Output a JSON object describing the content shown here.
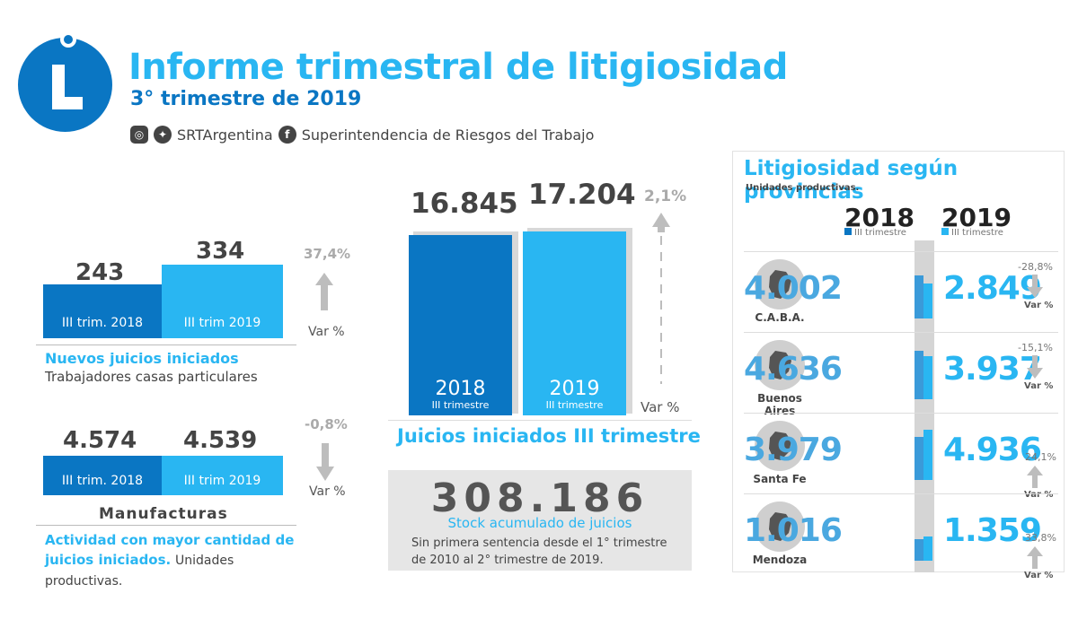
{
  "header": {
    "title": "Informe trimestral de litigiosidad",
    "subtitle": "3° trimestre de 2019",
    "social_handle": "SRTArgentina",
    "social_page": "Superintendencia de Riesgos del Trabajo"
  },
  "colors": {
    "dark_blue": "#0a76c3",
    "light_blue": "#29b6f2",
    "grey": "#444444"
  },
  "icons": [
    "instagram-icon",
    "twitter-icon",
    "facebook-icon",
    "up-arrow-icon",
    "down-arrow-icon"
  ],
  "chart_data": [
    {
      "type": "bar",
      "categories": [
        "III trim. 2018",
        "III trim 2019"
      ],
      "values": [
        243,
        334
      ],
      "value_labels": [
        "243",
        "334"
      ],
      "change": "37,4%",
      "change_label": "Var %",
      "title": "Nuevos juicios iniciados",
      "subtitle": "Trabajadores casas particulares"
    },
    {
      "type": "bar",
      "categories": [
        "III trim. 2018",
        "III trim 2019"
      ],
      "values": [
        4574,
        4539
      ],
      "value_labels": [
        "4.574",
        "4.539"
      ],
      "change": "-0,8%",
      "change_label": "Var %",
      "title": "Manufacturas",
      "caption_blue": "Actividad con mayor cantidad de juicios iniciados.",
      "caption_dark": "Unidades productivas."
    },
    {
      "type": "bar",
      "categories": [
        "2018",
        "2019"
      ],
      "category_sub": "III trimestre",
      "values": [
        16845,
        17204
      ],
      "value_labels": [
        "16.845",
        "17.204"
      ],
      "change": "2,1%",
      "change_label": "Var %",
      "title": "Juicios iniciados III trimestre"
    },
    {
      "type": "bar",
      "title": "Litigiosidad según provincias",
      "subtitle": "Unidades productivas.",
      "series": [
        {
          "name": "2018",
          "sub": "III trimestre"
        },
        {
          "name": "2019",
          "sub": "III trimestre"
        }
      ],
      "rows": [
        {
          "province": "C.A.B.A.",
          "v2018": 4002,
          "v2019": 2849,
          "l2018": "4.002",
          "l2019": "2.849",
          "change": "-28,8%",
          "dir": "down"
        },
        {
          "province": "Buenos Aires",
          "v2018": 4636,
          "v2019": 3937,
          "l2018": "4.636",
          "l2019": "3.937",
          "change": "-15,1%",
          "dir": "down"
        },
        {
          "province": "Santa Fe",
          "v2018": 3979,
          "v2019": 4936,
          "l2018": "3.979",
          "l2019": "4.936",
          "change": "24,1%",
          "dir": "up"
        },
        {
          "province": "Mendoza",
          "v2018": 1016,
          "v2019": 1359,
          "l2018": "1.016",
          "l2019": "1.359",
          "change": "33,8%",
          "dir": "up"
        }
      ],
      "change_label": "Var %"
    }
  ],
  "stock": {
    "value": "308.186",
    "label": "Stock acumulado de juicios",
    "note": "Sin primera sentencia desde el 1° trimestre de 2010 al 2° trimestre de 2019."
  }
}
